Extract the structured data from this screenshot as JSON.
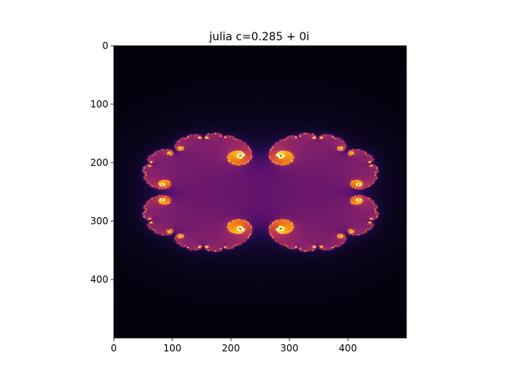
{
  "chart_data": {
    "type": "heatmap",
    "title": "julia c=0.285 + 0i",
    "xlabel": "",
    "ylabel": "",
    "xlim": [
      0,
      500
    ],
    "ylim": [
      500,
      0
    ],
    "x_ticks": [
      "0",
      "100",
      "200",
      "300",
      "400"
    ],
    "y_ticks": [
      "0",
      "100",
      "200",
      "300",
      "400"
    ],
    "x_tick_values": [
      0,
      100,
      200,
      300,
      400
    ],
    "y_tick_values": [
      0,
      100,
      200,
      300,
      400
    ],
    "colormap": "inferno",
    "grid": false,
    "julia_c": {
      "re": 0.285,
      "im": 0
    },
    "colors": {
      "background": "#000004",
      "body": "#420a68",
      "highlight": "#f98e09"
    }
  }
}
